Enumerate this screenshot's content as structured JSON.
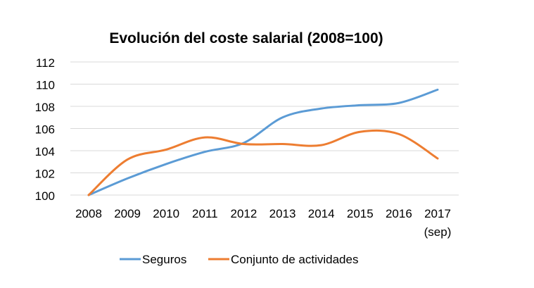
{
  "chart_data": {
    "type": "line",
    "title": "Evolución del coste salarial (2008=100)",
    "xlabel": "",
    "ylabel": "",
    "categories": [
      "2008",
      "2009",
      "2010",
      "2011",
      "2012",
      "2013",
      "2014",
      "2015",
      "2016",
      "2017"
    ],
    "category_sublabels": [
      "",
      "",
      "",
      "",
      "",
      "",
      "",
      "",
      "",
      "(sep)"
    ],
    "ylim": [
      100,
      112
    ],
    "yticks": [
      "100",
      "102",
      "104",
      "106",
      "108",
      "110",
      "112"
    ],
    "grid": true,
    "legend_position": "bottom",
    "smooth": true,
    "series": [
      {
        "name": "Seguros",
        "color": "#5b9bd5",
        "values": [
          100,
          101.5,
          102.8,
          103.9,
          104.7,
          107.0,
          107.8,
          108.1,
          108.3,
          109.5
        ]
      },
      {
        "name": "Conjunto de actividades",
        "color": "#ed7d31",
        "values": [
          100,
          103.2,
          104.1,
          105.2,
          104.6,
          104.6,
          104.5,
          105.7,
          105.5,
          103.3
        ]
      }
    ]
  }
}
